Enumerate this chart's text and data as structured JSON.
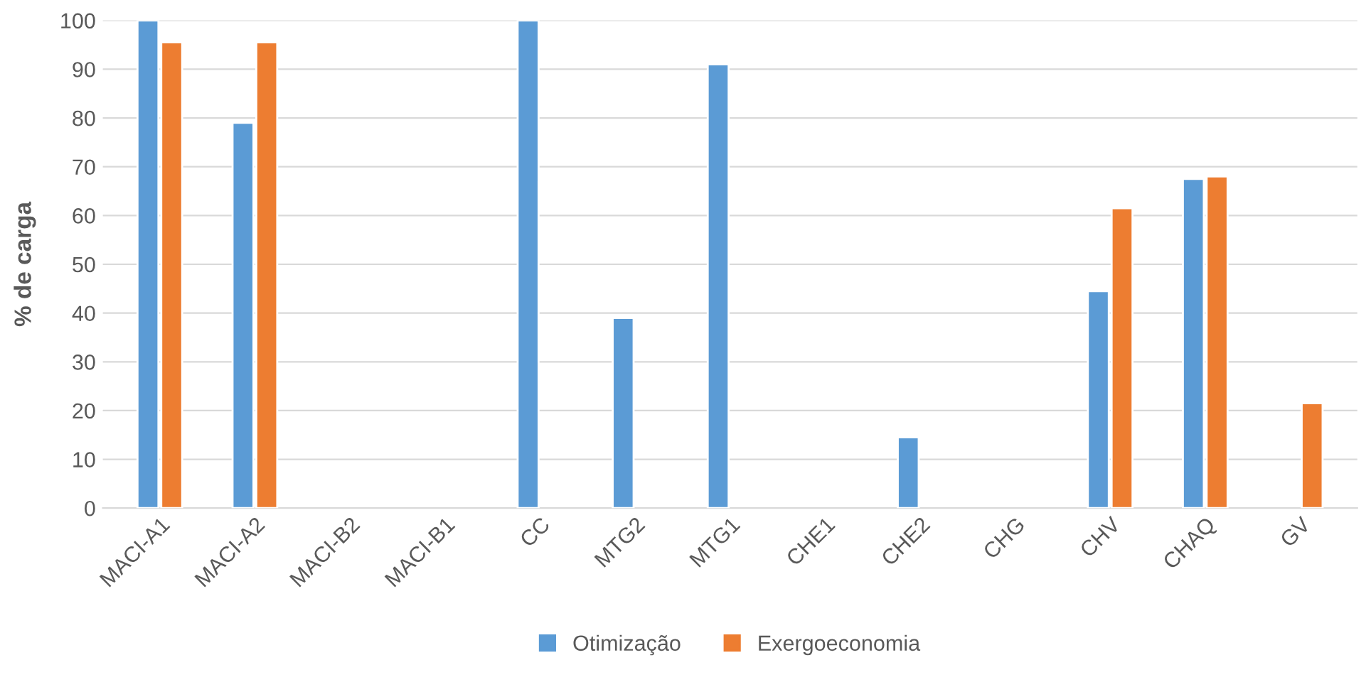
{
  "chart_data": {
    "type": "bar",
    "ylabel": "% de carga",
    "categories": [
      "MACI-A1",
      "MACI-A2",
      "MACI-B2",
      "MACI-B1",
      "CC",
      "MTG2",
      "MTG1",
      "CHE1",
      "CHE2",
      "CHG",
      "CHV",
      "CHAQ",
      "GV"
    ],
    "series": [
      {
        "name": "Otimização",
        "color": "#5b9bd5",
        "values": [
          100,
          79,
          0,
          0,
          100,
          39,
          91,
          0,
          14.5,
          0,
          44.5,
          67.5,
          0
        ]
      },
      {
        "name": "Exergoeconomia",
        "color": "#ed7d31",
        "values": [
          95.5,
          95.5,
          0,
          0,
          0,
          0,
          0,
          0,
          0,
          0,
          61.5,
          68,
          21.5
        ]
      }
    ],
    "ylim": [
      0,
      100
    ],
    "yticks": [
      0,
      10,
      20,
      30,
      40,
      50,
      60,
      70,
      80,
      90,
      100
    ],
    "grid": "y",
    "legend": "bottom"
  }
}
